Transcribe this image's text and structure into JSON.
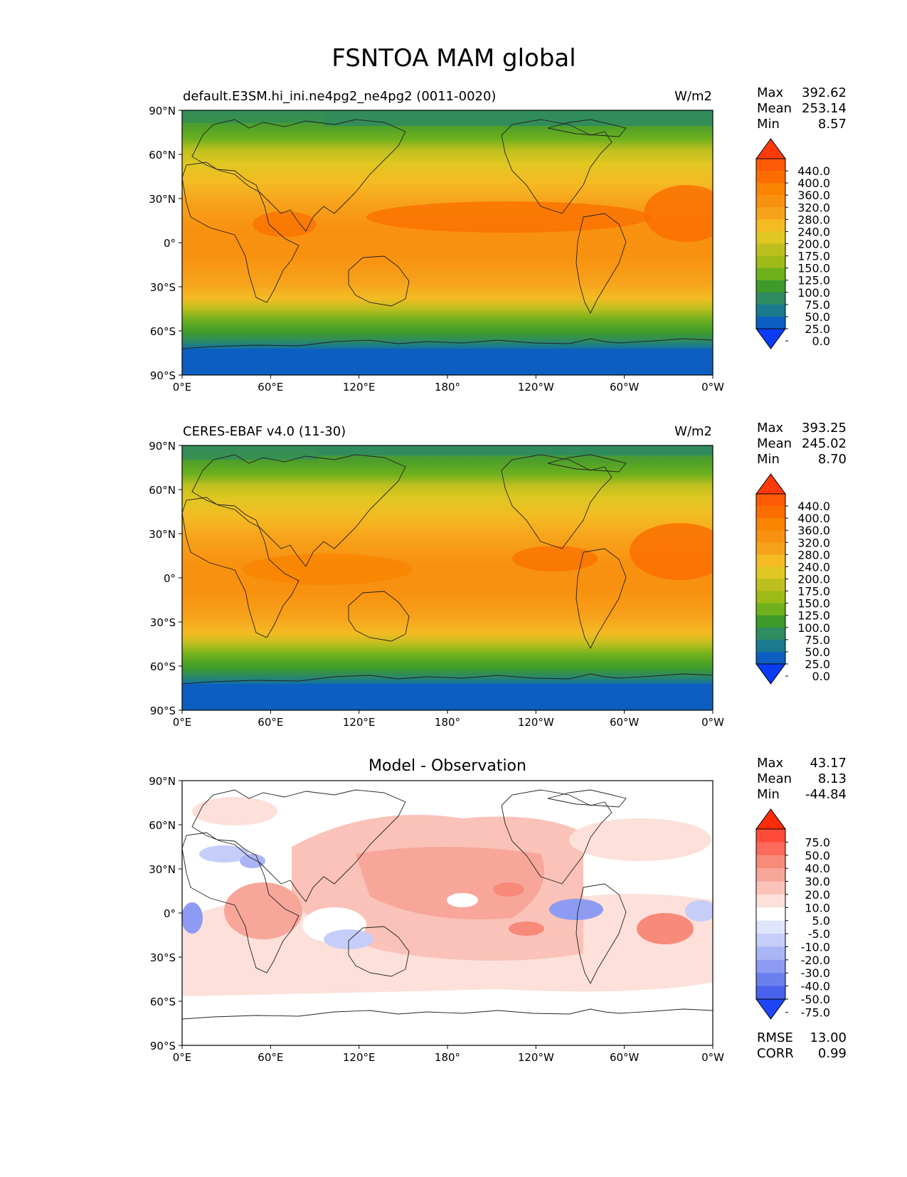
{
  "figure": {
    "title": "FSNTOA MAM global"
  },
  "axes": {
    "lat_ticks": [
      "90°N",
      "60°N",
      "30°N",
      "0°",
      "30°S",
      "60°S",
      "90°S"
    ],
    "lon_ticks": [
      "0°E",
      "60°E",
      "120°E",
      "180°",
      "120°W",
      "60°W",
      "0°W"
    ]
  },
  "panels": [
    {
      "id": "model",
      "left_title": "default.E3SM.hi_ini.ne4pg2_ne4pg2 (0011-0020)",
      "center_title": "",
      "units": "W/m2",
      "stats": {
        "max_label": "Max",
        "max": "392.62",
        "mean_label": "Mean",
        "mean": "253.14",
        "min_label": "Min",
        "min": "8.57"
      },
      "colorbar": {
        "labels": [
          "440.0",
          "400.0",
          "360.0",
          "320.0",
          "280.0",
          "240.0",
          "200.0",
          "175.0",
          "150.0",
          "125.0",
          "100.0",
          "75.0",
          "50.0",
          "25.0",
          "0.0"
        ],
        "colors": [
          "#ff3a0a",
          "#ff5a05",
          "#fb6d00",
          "#fa8300",
          "#f89110",
          "#f7a21b",
          "#f4bb23",
          "#e0c721",
          "#bdbf1f",
          "#9dba18",
          "#6fb11d",
          "#3e9b2a",
          "#2f8b60",
          "#1b7a8d",
          "#0c5fc0",
          "#0a3cf5"
        ]
      }
    },
    {
      "id": "obs",
      "left_title": "CERES-EBAF v4.0 (11-30)",
      "center_title": "",
      "units": "W/m2",
      "stats": {
        "max_label": "Max",
        "max": "393.25",
        "mean_label": "Mean",
        "mean": "245.02",
        "min_label": "Min",
        "min": "8.70"
      },
      "colorbar": {
        "labels": [
          "440.0",
          "400.0",
          "360.0",
          "320.0",
          "280.0",
          "240.0",
          "200.0",
          "175.0",
          "150.0",
          "125.0",
          "100.0",
          "75.0",
          "50.0",
          "25.0",
          "0.0"
        ],
        "colors": [
          "#ff3a0a",
          "#ff5a05",
          "#fb6d00",
          "#fa8300",
          "#f89110",
          "#f7a21b",
          "#f4bb23",
          "#e0c721",
          "#bdbf1f",
          "#9dba18",
          "#6fb11d",
          "#3e9b2a",
          "#2f8b60",
          "#1b7a8d",
          "#0c5fc0",
          "#0a3cf5"
        ]
      }
    },
    {
      "id": "diff",
      "left_title": "",
      "center_title": "Model - Observation",
      "units": "",
      "stats": {
        "max_label": "Max",
        "max": "43.17",
        "mean_label": "Mean",
        "mean": "8.13",
        "min_label": "Min",
        "min": "-44.84"
      },
      "colorbar": {
        "labels": [
          "75.0",
          "50.0",
          "40.0",
          "30.0",
          "20.0",
          "10.0",
          "5.0",
          "-5.0",
          "-10.0",
          "-20.0",
          "-30.0",
          "-40.0",
          "-50.0",
          "-75.0"
        ],
        "colors": [
          "#ff2b0a",
          "#ff4b3a",
          "#fb6a5a",
          "#f88a7a",
          "#f8a69a",
          "#fac2b8",
          "#fde0da",
          "#ffffff",
          "#dfe5fb",
          "#c5cdf8",
          "#a9b5f5",
          "#8d9cf2",
          "#6b80ee",
          "#4a62ec",
          "#1e45f7"
        ]
      },
      "extra_stats": {
        "rmse_label": "RMSE",
        "rmse": "13.00",
        "corr_label": "CORR",
        "corr": "0.99"
      }
    }
  ]
}
